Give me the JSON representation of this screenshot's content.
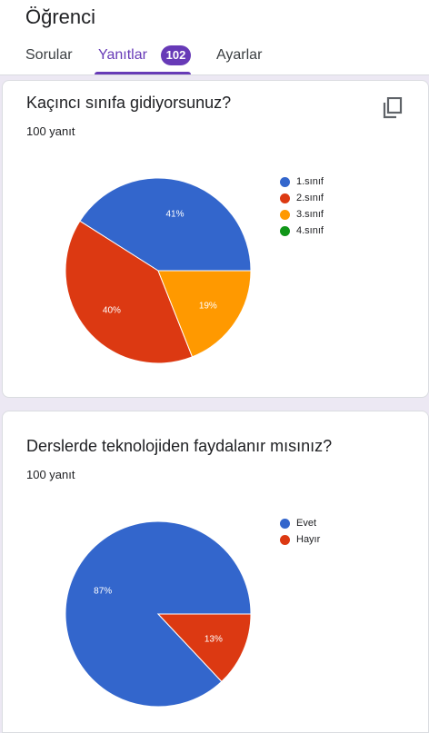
{
  "header": {
    "title": "Öğrenci",
    "tabs": [
      {
        "label": "Sorular"
      },
      {
        "label": "Yanıtlar",
        "badge": "102",
        "active": true
      },
      {
        "label": "Ayarlar"
      }
    ]
  },
  "colors": {
    "accent": "#673ab7",
    "blue": "#3366cc",
    "red": "#dc3912",
    "orange": "#ff9900",
    "green": "#109618"
  },
  "questions": [
    {
      "title": "Kaçıncı sınıfa gidiyorsunuz?",
      "count": "100 yanıt",
      "copy_icon": "copy-icon"
    },
    {
      "title": "Derslerde teknolojiden faydalanır mısınız?",
      "count": "100 yanıt"
    }
  ],
  "chart_data": [
    {
      "type": "pie",
      "categories": [
        "1.sınıf",
        "2.sınıf",
        "3.sınıf",
        "4.sınıf"
      ],
      "values": [
        41,
        40,
        19,
        0
      ],
      "labels": [
        "41%",
        "40%",
        "19%",
        ""
      ],
      "colors": [
        "#3366cc",
        "#dc3912",
        "#ff9900",
        "#109618"
      ],
      "legend": "right"
    },
    {
      "type": "pie",
      "categories": [
        "Evet",
        "Hayır"
      ],
      "values": [
        87,
        13
      ],
      "labels": [
        "87%",
        "13%"
      ],
      "colors": [
        "#3366cc",
        "#dc3912"
      ],
      "legend": "right"
    }
  ]
}
